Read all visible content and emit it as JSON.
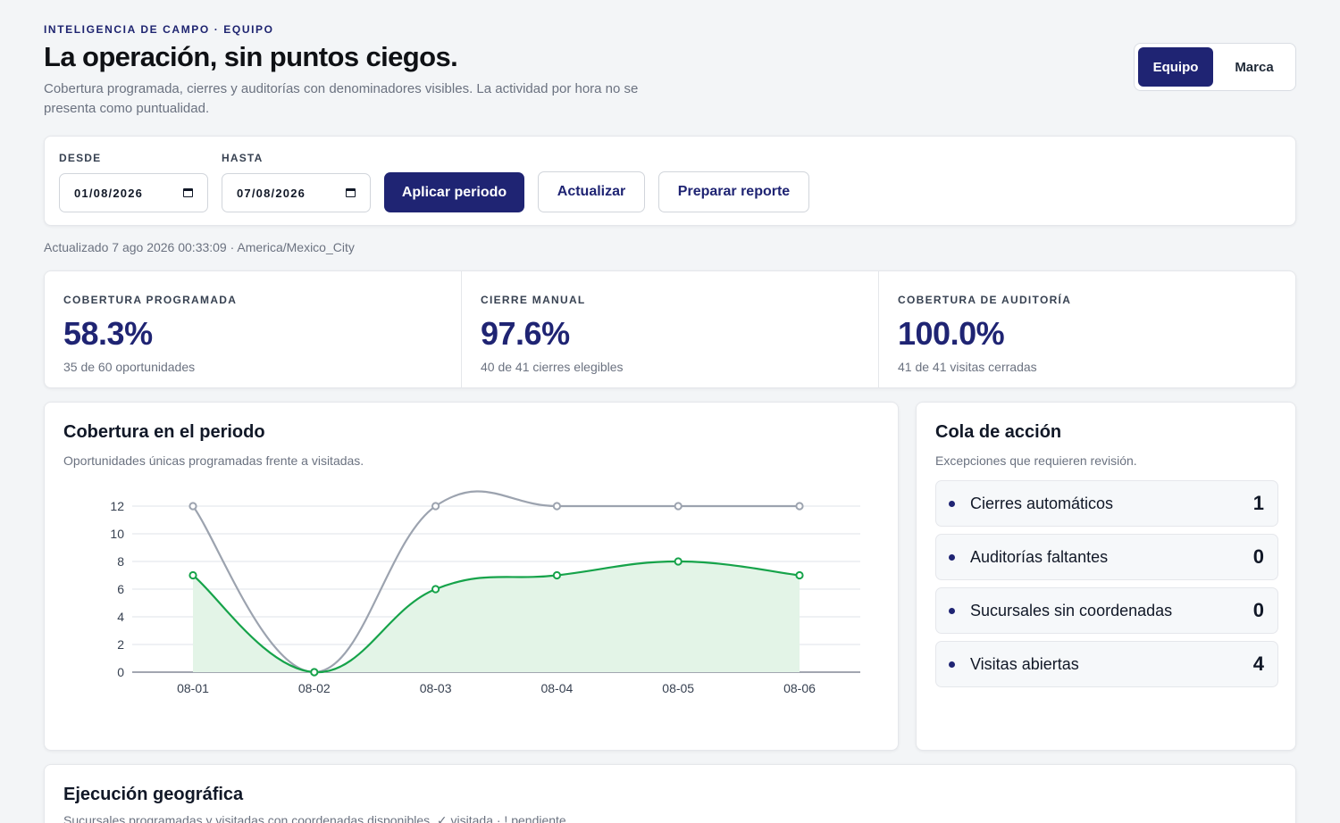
{
  "header": {
    "eyebrow": "INTELIGENCIA DE CAMPO · EQUIPO",
    "title": "La operación, sin puntos ciegos.",
    "subtitle": "Cobertura programada, cierres y auditorías con denominadores visibles. La actividad por hora no se presenta como puntualidad."
  },
  "view_toggle": {
    "options": [
      "Equipo",
      "Marca"
    ],
    "selected": "Equipo"
  },
  "filters": {
    "from_label": "DESDE",
    "from_value": "01/08/2026",
    "to_label": "HASTA",
    "to_value": "07/08/2026",
    "apply_label": "Aplicar periodo",
    "refresh_label": "Actualizar",
    "report_label": "Preparar reporte"
  },
  "updated_text": "Actualizado 7 ago 2026 00:33:09 · America/Mexico_City",
  "kpis": [
    {
      "label": "COBERTURA PROGRAMADA",
      "value": "58.3%",
      "sub": "35 de 60 oportunidades"
    },
    {
      "label": "CIERRE MANUAL",
      "value": "97.6%",
      "sub": "40 de 41 cierres elegibles"
    },
    {
      "label": "COBERTURA DE AUDITORÍA",
      "value": "100.0%",
      "sub": "41 de 41 visitas cerradas"
    }
  ],
  "coverage_card": {
    "title": "Cobertura en el periodo",
    "subtitle": "Oportunidades únicas programadas frente a visitadas."
  },
  "chart_data": {
    "type": "line",
    "categories": [
      "08-01",
      "08-02",
      "08-03",
      "08-04",
      "08-05",
      "08-06"
    ],
    "series": [
      {
        "values": [
          12,
          0,
          12,
          12,
          12,
          12
        ],
        "color": "#9ca3af"
      },
      {
        "values": [
          7,
          0,
          6,
          7,
          8,
          7
        ],
        "color": "#16a34a",
        "fill": "#e3f4e7"
      }
    ],
    "yticks": [
      0,
      2,
      4,
      6,
      8,
      10,
      12
    ],
    "ylim": [
      0,
      12
    ],
    "grid": true,
    "title": "",
    "xlabel": "",
    "ylabel": ""
  },
  "queue": {
    "title": "Cola de acción",
    "subtitle": "Excepciones que requieren revisión.",
    "items": [
      {
        "label": "Cierres automáticos",
        "count": "1"
      },
      {
        "label": "Auditorías faltantes",
        "count": "0"
      },
      {
        "label": "Sucursales sin coordenadas",
        "count": "0"
      },
      {
        "label": "Visitas abiertas",
        "count": "4"
      }
    ]
  },
  "geo": {
    "title": "Ejecución geográfica",
    "subtitle": "Sucursales programadas y visitadas con coordenadas disponibles. ✓ visitada · ! pendiente"
  },
  "colors": {
    "accent": "#1f2473",
    "visited_line": "#16a34a",
    "scheduled_line": "#9ca3af",
    "background": "#f3f5f7"
  }
}
